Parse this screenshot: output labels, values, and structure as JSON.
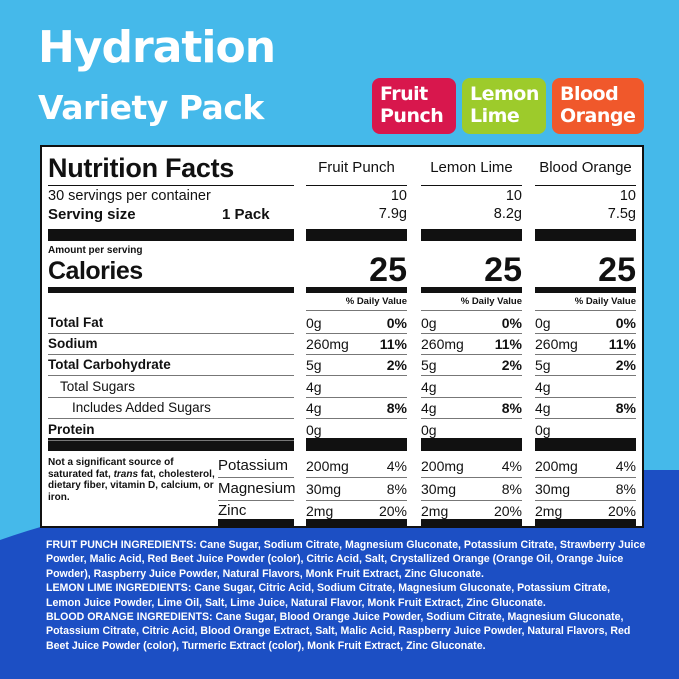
{
  "title_line1": "Hydration",
  "title_line2": "Variety Pack",
  "colors": {
    "background": "#45b9ea",
    "wave": "#1c4fc4",
    "fruit_punch": "#d8174d",
    "lemon_lime": "#9dcb2b",
    "blood_orange": "#f0582b"
  },
  "badges": [
    {
      "line1": "Fruit",
      "line2": "Punch"
    },
    {
      "line1": "Lemon",
      "line2": "Lime"
    },
    {
      "line1": "Blood",
      "line2": "Orange"
    }
  ],
  "label": {
    "heading": "Nutrition Facts",
    "servings_per_container": "30 servings per container",
    "serving_size_label": "Serving size",
    "serving_size_value": "1 Pack",
    "amount_per_serving": "Amount per serving",
    "calories_label": "Calories",
    "daily_value_header": "% Daily Value",
    "nutrients": [
      "Total Fat",
      "Sodium",
      "Total Carbohydrate",
      "Total Sugars",
      "Includes Added Sugars",
      "Protein"
    ],
    "minerals": [
      "Potassium",
      "Magnesium",
      "Zinc"
    ],
    "footnote_pre": "Not a significant source of saturated fat, ",
    "footnote_italic": "trans",
    "footnote_post": " fat, cholesterol, dietary fiber, vitamin D, calcium, or iron."
  },
  "flavors": [
    {
      "name": "Fruit Punch",
      "servings": "10",
      "size": "7.9g",
      "calories": "25",
      "nutrients": [
        [
          "0g",
          "0%"
        ],
        [
          "260mg",
          "11%"
        ],
        [
          "5g",
          "2%"
        ],
        [
          "4g",
          ""
        ],
        [
          "4g",
          "8%"
        ],
        [
          "0g",
          ""
        ]
      ],
      "minerals": [
        [
          "200mg",
          "4%"
        ],
        [
          "30mg",
          "8%"
        ],
        [
          "2mg",
          "20%"
        ]
      ]
    },
    {
      "name": "Lemon Lime",
      "servings": "10",
      "size": "8.2g",
      "calories": "25",
      "nutrients": [
        [
          "0g",
          "0%"
        ],
        [
          "260mg",
          "11%"
        ],
        [
          "5g",
          "2%"
        ],
        [
          "4g",
          ""
        ],
        [
          "4g",
          "8%"
        ],
        [
          "0g",
          ""
        ]
      ],
      "minerals": [
        [
          "200mg",
          "4%"
        ],
        [
          "30mg",
          "8%"
        ],
        [
          "2mg",
          "20%"
        ]
      ]
    },
    {
      "name": "Blood Orange",
      "servings": "10",
      "size": "7.5g",
      "calories": "25",
      "nutrients": [
        [
          "0g",
          "0%"
        ],
        [
          "260mg",
          "11%"
        ],
        [
          "5g",
          "2%"
        ],
        [
          "4g",
          ""
        ],
        [
          "4g",
          "8%"
        ],
        [
          "0g",
          ""
        ]
      ],
      "minerals": [
        [
          "200mg",
          "4%"
        ],
        [
          "30mg",
          "8%"
        ],
        [
          "2mg",
          "20%"
        ]
      ]
    }
  ],
  "ingredients": [
    {
      "label": "FRUIT PUNCH INGREDIENTS:",
      "text": " Cane Sugar, Sodium Citrate, Magnesium Gluconate, Potassium Citrate, Strawberry Juice Powder, Malic Acid, Red Beet Juice Powder (color), Citric Acid, Salt, Crystallized Orange (Orange Oil, Orange Juice Powder), Raspberry Juice Powder, Natural Flavors, Monk Fruit Extract, Zinc Gluconate."
    },
    {
      "label": "LEMON LIME INGREDIENTS:",
      "text": " Cane Sugar, Citric Acid, Sodium Citrate, Magnesium Gluconate, Potassium Citrate, Lemon Juice Powder, Lime Oil, Salt, Lime Juice, Natural Flavor, Monk Fruit Extract, Zinc Gluconate."
    },
    {
      "label": "BLOOD ORANGE INGREDIENTS:",
      "text": " Cane Sugar, Blood Orange Juice Powder, Sodium Citrate, Magnesium Gluconate, Potassium Citrate, Citric Acid, Blood Orange Extract, Salt, Malic Acid, Raspberry Juice Powder, Natural Flavors, Red Beet Juice Powder (color), Turmeric Extract (color), Monk Fruit Extract, Zinc Gluconate."
    }
  ]
}
